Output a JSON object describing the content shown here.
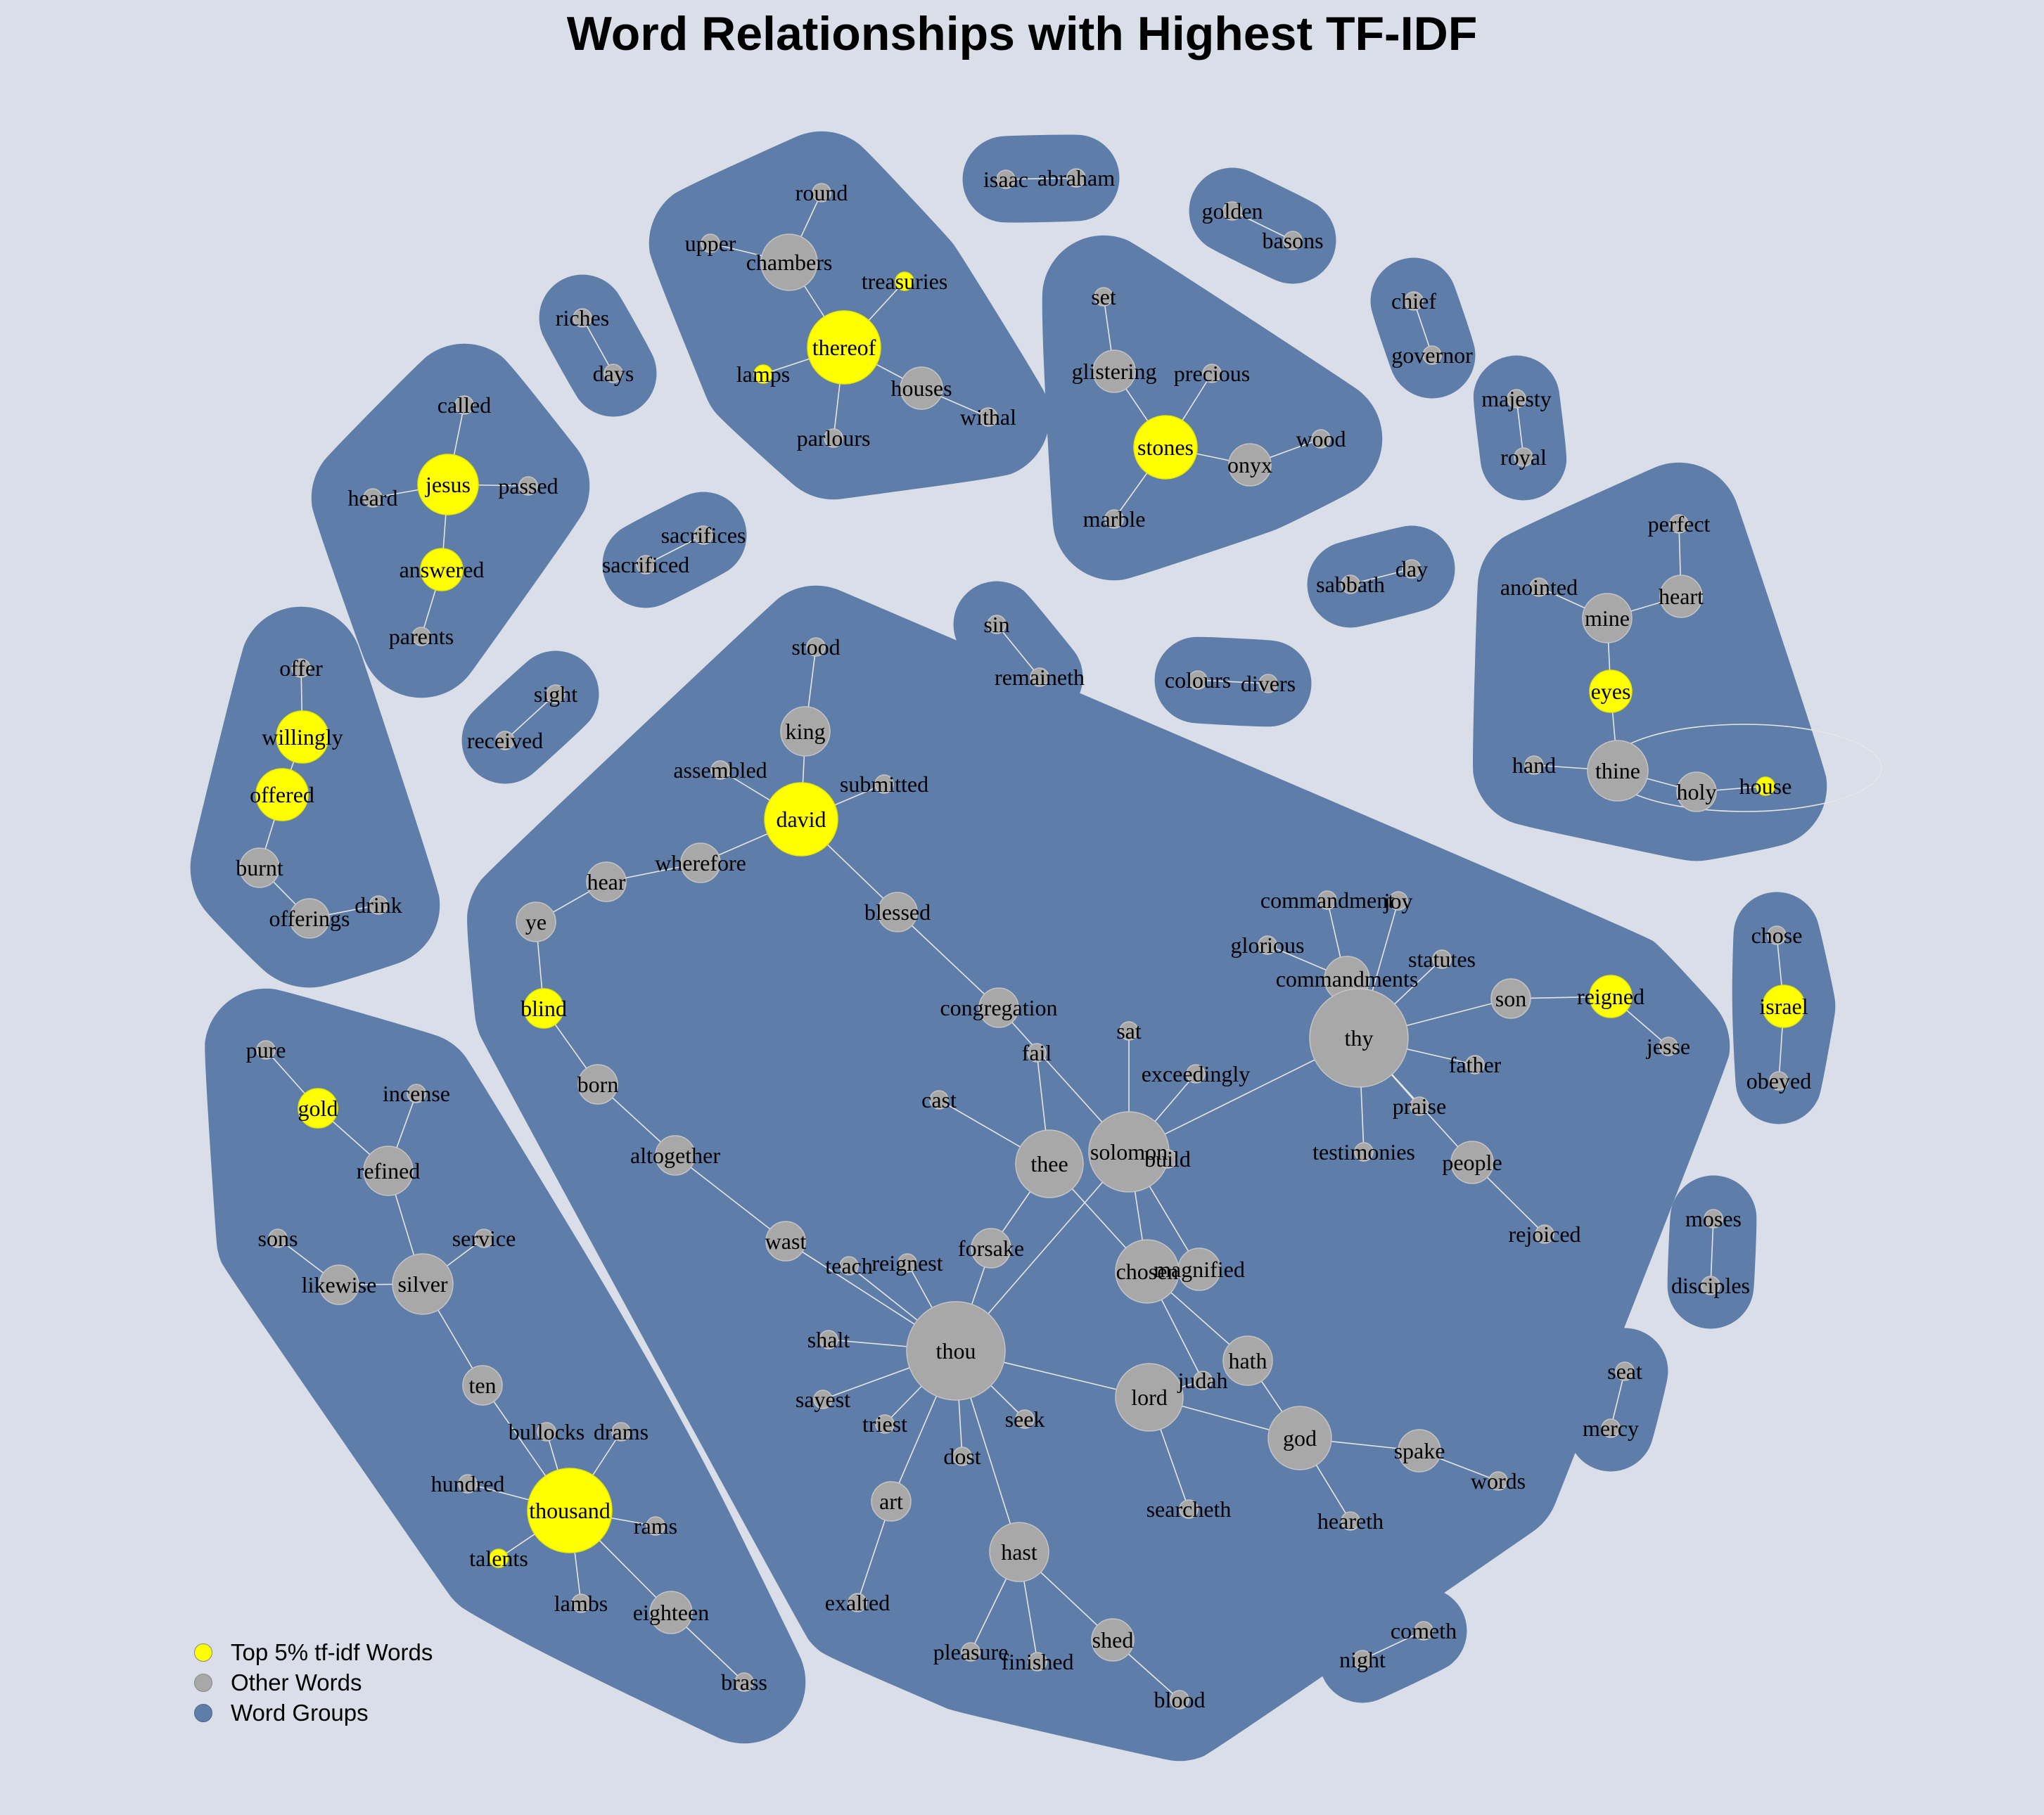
{
  "title": "Word Relationships with Highest TF-IDF",
  "colors": {
    "background": "#D9DEE8",
    "group": "#5E7DA8",
    "top": "#FFFF00",
    "other": "#A8A8A8",
    "edge": "#E6E6E6"
  },
  "legend": [
    {
      "label": "Top 5% tf-idf Words",
      "color": "#FFFF00"
    },
    {
      "label": "Other Words",
      "color": "#A8A8A8"
    },
    {
      "label": "Word Groups",
      "color": "#5E7DA8"
    }
  ],
  "groups": [
    {
      "words": [
        "isaac",
        "abraham"
      ],
      "edges": [
        [
          "isaac",
          "abraham"
        ]
      ]
    },
    {
      "words": [
        "golden",
        "basons"
      ],
      "edges": [
        [
          "golden",
          "basons"
        ]
      ]
    },
    {
      "words": [
        "chief",
        "governor"
      ],
      "edges": [
        [
          "chief",
          "governor"
        ]
      ]
    },
    {
      "words": [
        "majesty",
        "royal"
      ],
      "edges": [
        [
          "majesty",
          "royal"
        ]
      ]
    },
    {
      "words": [
        "riches",
        "days"
      ],
      "edges": [
        [
          "riches",
          "days"
        ]
      ]
    },
    {
      "words": [
        "sacrifices",
        "sacrificed"
      ],
      "edges": [
        [
          "sacrifices",
          "sacrificed"
        ]
      ]
    },
    {
      "words": [
        "sight",
        "received"
      ],
      "edges": [
        [
          "sight",
          "received"
        ]
      ]
    },
    {
      "words": [
        "sin",
        "remaineth"
      ],
      "edges": [
        [
          "sin",
          "remaineth"
        ]
      ]
    },
    {
      "words": [
        "colours",
        "divers"
      ],
      "edges": [
        [
          "colours",
          "divers"
        ]
      ]
    },
    {
      "words": [
        "sabbath",
        "day"
      ],
      "edges": [
        [
          "sabbath",
          "day"
        ]
      ]
    },
    {
      "words": [
        "moses",
        "disciples"
      ],
      "edges": [
        [
          "moses",
          "disciples"
        ]
      ]
    },
    {
      "words": [
        "seat",
        "mercy"
      ],
      "edges": [
        [
          "seat",
          "mercy"
        ]
      ]
    },
    {
      "words": [
        "cometh",
        "night"
      ],
      "edges": [
        [
          "cometh",
          "night"
        ]
      ]
    },
    {
      "words": [
        "chose",
        "israel",
        "obeyed"
      ],
      "edges": [
        [
          "chose",
          "israel"
        ],
        [
          "israel",
          "obeyed"
        ]
      ]
    },
    {
      "words": [
        "round",
        "upper",
        "chambers",
        "treasuries",
        "thereof",
        "lamps",
        "houses",
        "withal",
        "parlours"
      ],
      "edges": [
        [
          "round",
          "chambers"
        ],
        [
          "upper",
          "chambers"
        ],
        [
          "chambers",
          "thereof"
        ],
        [
          "treasuries",
          "thereof"
        ],
        [
          "lamps",
          "thereof"
        ],
        [
          "thereof",
          "houses"
        ],
        [
          "houses",
          "withal"
        ],
        [
          "thereof",
          "parlours"
        ]
      ]
    },
    {
      "words": [
        "set",
        "glistering",
        "precious",
        "stones",
        "onyx",
        "wood",
        "marble"
      ],
      "edges": [
        [
          "set",
          "glistering"
        ],
        [
          "glistering",
          "stones"
        ],
        [
          "precious",
          "stones"
        ],
        [
          "stones",
          "onyx"
        ],
        [
          "onyx",
          "wood"
        ],
        [
          "stones",
          "marble"
        ]
      ]
    },
    {
      "words": [
        "called",
        "jesus",
        "heard",
        "passed",
        "answered",
        "parents"
      ],
      "edges": [
        [
          "called",
          "jesus"
        ],
        [
          "heard",
          "jesus"
        ],
        [
          "jesus",
          "passed"
        ],
        [
          "jesus",
          "answered"
        ],
        [
          "answered",
          "parents"
        ]
      ]
    },
    {
      "words": [
        "offer",
        "willingly",
        "offered",
        "burnt",
        "offerings",
        "drink"
      ],
      "edges": [
        [
          "offer",
          "willingly"
        ],
        [
          "willingly",
          "offered"
        ],
        [
          "offered",
          "burnt"
        ],
        [
          "burnt",
          "offerings"
        ],
        [
          "offerings",
          "drink"
        ]
      ]
    },
    {
      "words": [
        "perfect",
        "anointed",
        "heart",
        "mine",
        "eyes",
        "hand",
        "thine",
        "holy",
        "house"
      ],
      "edges": [
        [
          "perfect",
          "heart"
        ],
        [
          "heart",
          "mine"
        ],
        [
          "anointed",
          "mine"
        ],
        [
          "mine",
          "eyes"
        ],
        [
          "eyes",
          "thine"
        ],
        [
          "hand",
          "thine"
        ],
        [
          "thine",
          "holy"
        ],
        [
          "holy",
          "house"
        ],
        [
          "thine",
          "house"
        ]
      ]
    },
    {
      "words": [
        "pure",
        "gold",
        "incense",
        "refined",
        "sons",
        "service",
        "likewise",
        "silver",
        "ten",
        "bullocks",
        "drams",
        "hundred",
        "thousand",
        "rams",
        "talents",
        "lambs",
        "eighteen",
        "brass"
      ],
      "edges": [
        [
          "pure",
          "gold"
        ],
        [
          "gold",
          "refined"
        ],
        [
          "incense",
          "refined"
        ],
        [
          "refined",
          "silver"
        ],
        [
          "sons",
          "likewise"
        ],
        [
          "likewise",
          "silver"
        ],
        [
          "service",
          "silver"
        ],
        [
          "silver",
          "ten"
        ],
        [
          "ten",
          "thousand"
        ],
        [
          "bullocks",
          "thousand"
        ],
        [
          "drams",
          "thousand"
        ],
        [
          "hundred",
          "thousand"
        ],
        [
          "thousand",
          "rams"
        ],
        [
          "talents",
          "thousand"
        ],
        [
          "thousand",
          "lambs"
        ],
        [
          "thousand",
          "eighteen"
        ],
        [
          "eighteen",
          "brass"
        ]
      ]
    },
    {
      "words": [
        "stood",
        "king",
        "assembled",
        "submitted",
        "david",
        "hear",
        "wherefore",
        "ye",
        "blessed",
        "blind",
        "congregation",
        "born",
        "fail",
        "sat",
        "exceedingly",
        "cast",
        "altogether",
        "thee",
        "solomon",
        "build",
        "wast",
        "forsake",
        "teach",
        "reignest",
        "chosen",
        "magnified",
        "shalt",
        "thou",
        "hath",
        "judah",
        "lord",
        "sayest",
        "triest",
        "seek",
        "dost",
        "god",
        "spake",
        "words",
        "art",
        "searcheth",
        "heareth",
        "hast",
        "exalted",
        "shed",
        "pleasure",
        "finished",
        "blood",
        "commandment",
        "joy",
        "glorious",
        "statutes",
        "commandments",
        "son",
        "reigned",
        "thy",
        "jesse",
        "father",
        "praise",
        "testimonies",
        "people",
        "rejoiced"
      ],
      "edges": [
        [
          "stood",
          "king"
        ],
        [
          "king",
          "david"
        ],
        [
          "assembled",
          "david"
        ],
        [
          "submitted",
          "david"
        ],
        [
          "david",
          "wherefore"
        ],
        [
          "wherefore",
          "hear"
        ],
        [
          "hear",
          "ye"
        ],
        [
          "ye",
          "blind"
        ],
        [
          "blind",
          "born"
        ],
        [
          "born",
          "altogether"
        ],
        [
          "altogether",
          "wast"
        ],
        [
          "wast",
          "thou"
        ],
        [
          "david",
          "blessed"
        ],
        [
          "blessed",
          "congregation"
        ],
        [
          "congregation",
          "solomon"
        ],
        [
          "fail",
          "thee"
        ],
        [
          "sat",
          "solomon"
        ],
        [
          "exceedingly",
          "solomon"
        ],
        [
          "cast",
          "thee"
        ],
        [
          "thee",
          "chosen"
        ],
        [
          "thee",
          "forsake"
        ],
        [
          "forsake",
          "thou"
        ],
        [
          "solomon",
          "thou"
        ],
        [
          "solomon",
          "chosen"
        ],
        [
          "solomon",
          "magnified"
        ],
        [
          "build",
          "solomon"
        ],
        [
          "solomon",
          "thy"
        ],
        [
          "teach",
          "thou"
        ],
        [
          "reignest",
          "thou"
        ],
        [
          "shalt",
          "thou"
        ],
        [
          "thou",
          "lord"
        ],
        [
          "sayest",
          "thou"
        ],
        [
          "triest",
          "thou"
        ],
        [
          "seek",
          "thou"
        ],
        [
          "dost",
          "thou"
        ],
        [
          "thou",
          "art"
        ],
        [
          "thou",
          "hast"
        ],
        [
          "chosen",
          "hath"
        ],
        [
          "hath",
          "god"
        ],
        [
          "chosen",
          "judah"
        ],
        [
          "judah",
          "lord"
        ],
        [
          "lord",
          "god"
        ],
        [
          "lord",
          "searcheth"
        ],
        [
          "god",
          "spake"
        ],
        [
          "spake",
          "words"
        ],
        [
          "god",
          "heareth"
        ],
        [
          "art",
          "exalted"
        ],
        [
          "hast",
          "shed"
        ],
        [
          "hast",
          "pleasure"
        ],
        [
          "hast",
          "finished"
        ],
        [
          "shed",
          "blood"
        ],
        [
          "commandment",
          "thy"
        ],
        [
          "joy",
          "thy"
        ],
        [
          "glorious",
          "commandments"
        ],
        [
          "commandments",
          "thy"
        ],
        [
          "statutes",
          "thy"
        ],
        [
          "thy",
          "son"
        ],
        [
          "son",
          "reigned"
        ],
        [
          "reigned",
          "jesse"
        ],
        [
          "thy",
          "father"
        ],
        [
          "thy",
          "praise"
        ],
        [
          "thy",
          "testimonies"
        ],
        [
          "thy",
          "people"
        ],
        [
          "people",
          "rejoiced"
        ]
      ]
    }
  ],
  "nodes": {
    "isaac": "other",
    "abraham": "other",
    "golden": "other",
    "basons": "other",
    "chief": "other",
    "governor": "other",
    "majesty": "other",
    "royal": "other",
    "riches": "other",
    "days": "other",
    "sacrifices": "other",
    "sacrificed": "other",
    "sight": "other",
    "received": "other",
    "sin": "other",
    "remaineth": "other",
    "colours": "other",
    "divers": "other",
    "sabbath": "other",
    "day": "other",
    "moses": "other",
    "disciples": "other",
    "seat": "other",
    "mercy": "other",
    "cometh": "other",
    "night": "other",
    "chose": "other",
    "israel": "top",
    "obeyed": "other",
    "round": "other",
    "upper": "other",
    "chambers": "other",
    "treasuries": "top",
    "thereof": "top",
    "lamps": "top",
    "houses": "other",
    "withal": "other",
    "parlours": "other",
    "set": "other",
    "glistering": "other",
    "precious": "other",
    "stones": "top",
    "onyx": "other",
    "wood": "other",
    "marble": "other",
    "called": "other",
    "jesus": "top",
    "heard": "other",
    "passed": "other",
    "answered": "top",
    "parents": "other",
    "offer": "other",
    "willingly": "top",
    "offered": "top",
    "burnt": "other",
    "offerings": "other",
    "drink": "other",
    "perfect": "other",
    "anointed": "other",
    "heart": "other",
    "mine": "other",
    "eyes": "top",
    "hand": "other",
    "thine": "other",
    "holy": "other",
    "house": "top",
    "pure": "other",
    "gold": "top",
    "incense": "other",
    "refined": "other",
    "sons": "other",
    "service": "other",
    "likewise": "other",
    "silver": "other",
    "ten": "other",
    "bullocks": "other",
    "drams": "other",
    "hundred": "other",
    "thousand": "top",
    "rams": "other",
    "talents": "top",
    "lambs": "other",
    "eighteen": "other",
    "brass": "other",
    "stood": "other",
    "king": "other",
    "assembled": "other",
    "submitted": "other",
    "david": "top",
    "hear": "other",
    "wherefore": "other",
    "ye": "other",
    "blessed": "other",
    "blind": "top",
    "congregation": "other",
    "born": "other",
    "fail": "other",
    "sat": "other",
    "exceedingly": "other",
    "cast": "other",
    "altogether": "other",
    "thee": "other",
    "solomon": "other",
    "build": "other",
    "wast": "other",
    "forsake": "other",
    "teach": "other",
    "reignest": "other",
    "chosen": "other",
    "magnified": "other",
    "shalt": "other",
    "thou": "other",
    "hath": "other",
    "judah": "other",
    "lord": "other",
    "sayest": "other",
    "triest": "other",
    "seek": "other",
    "dost": "other",
    "god": "other",
    "spake": "other",
    "words": "other",
    "art": "other",
    "searcheth": "other",
    "heareth": "other",
    "hast": "other",
    "exalted": "other",
    "shed": "other",
    "pleasure": "other",
    "finished": "other",
    "blood": "other",
    "commandment": "other",
    "joy": "other",
    "glorious": "other",
    "statutes": "other",
    "commandments": "other",
    "son": "other",
    "reigned": "top",
    "thy": "other",
    "jesse": "other",
    "father": "other",
    "praise": "other",
    "testimonies": "other",
    "people": "other",
    "rejoiced": "other"
  }
}
